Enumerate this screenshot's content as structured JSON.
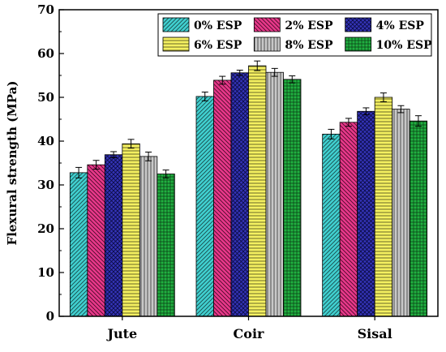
{
  "chart_data": {
    "type": "bar",
    "ylabel": "Flexural strength (MPa)",
    "ylim": [
      0,
      70
    ],
    "yticks": [
      0,
      10,
      20,
      30,
      40,
      50,
      60,
      70
    ],
    "categories": [
      "Jute",
      "Coir",
      "Sisal"
    ],
    "legend_position": "top-right",
    "series": [
      {
        "name": "0% ESP",
        "color": "#40d0d0",
        "pattern": "diag-left",
        "values": [
          32.8,
          50.2,
          41.6
        ],
        "errors": [
          1.2,
          1.0,
          1.1
        ]
      },
      {
        "name": "2% ESP",
        "color": "#e8388a",
        "pattern": "diag-right",
        "values": [
          34.6,
          53.9,
          44.3
        ],
        "errors": [
          1.0,
          0.9,
          0.9
        ]
      },
      {
        "name": "4% ESP",
        "color": "#3434b8",
        "pattern": "crosshatch",
        "values": [
          36.9,
          55.6,
          46.8
        ],
        "errors": [
          0.7,
          0.6,
          0.8
        ]
      },
      {
        "name": "6% ESP",
        "color": "#f4f060",
        "pattern": "horizontal",
        "values": [
          39.4,
          57.2,
          50.0
        ],
        "errors": [
          1.0,
          1.1,
          1.0
        ]
      },
      {
        "name": "8% ESP",
        "color": "#c0c0c0",
        "pattern": "vertical",
        "values": [
          36.5,
          55.7,
          47.3
        ],
        "errors": [
          1.0,
          0.9,
          0.8
        ]
      },
      {
        "name": "10% ESP",
        "color": "#20b040",
        "pattern": "grid",
        "values": [
          32.5,
          54.1,
          44.6
        ],
        "errors": [
          0.9,
          0.8,
          1.2
        ]
      }
    ]
  }
}
